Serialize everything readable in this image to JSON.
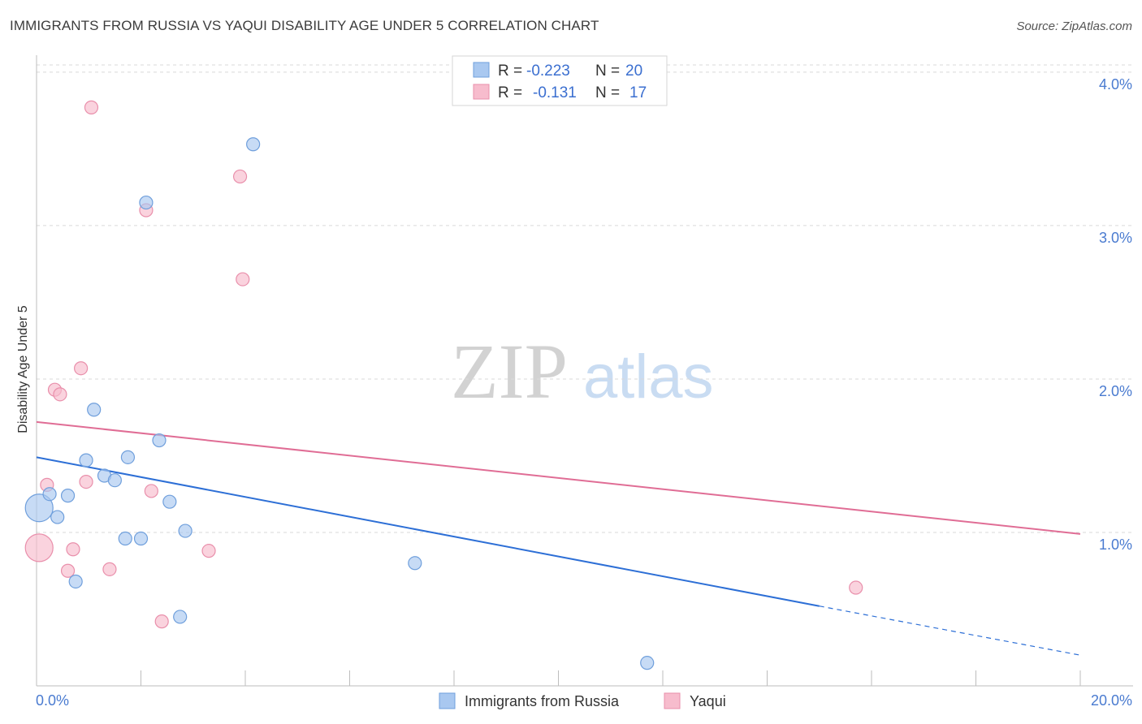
{
  "title": "IMMIGRANTS FROM RUSSIA VS YAQUI DISABILITY AGE UNDER 5 CORRELATION CHART",
  "source": "Source: ZipAtlas.com",
  "watermark": {
    "zip": "ZIP",
    "atlas": "atlas"
  },
  "colors": {
    "blue_fill": "#a9c8f0",
    "blue_stroke": "#6f9fdc",
    "blue_line": "#2d6fd6",
    "pink_fill": "#f7bccd",
    "pink_stroke": "#e98fab",
    "pink_line": "#e06d95",
    "grid": "#d9d9d9",
    "tick_label": "#4a7bd0"
  },
  "legend": {
    "rows": [
      {
        "r_label": "R =",
        "r_value": "-0.223",
        "n_label": "N =",
        "n_value": "20"
      },
      {
        "r_label": "R =",
        "r_value": "-0.131",
        "n_label": "N =",
        "n_value": "17"
      }
    ]
  },
  "bottom_legend": [
    "Immigrants from Russia",
    "Yaqui"
  ],
  "chart_data": {
    "type": "scatter",
    "title": "IMMIGRANTS FROM RUSSIA VS YAQUI DISABILITY AGE UNDER 5 CORRELATION CHART",
    "xlabel": "",
    "ylabel": "Disability Age Under 5",
    "xlim": [
      0,
      20
    ],
    "ylim": [
      0,
      4.1
    ],
    "x_tick_labels": [
      "0.0%",
      "20.0%"
    ],
    "y_ticks": [
      1.0,
      2.0,
      3.0,
      4.0
    ],
    "y_tick_labels": [
      "1.0%",
      "2.0%",
      "3.0%",
      "4.0%"
    ],
    "series": [
      {
        "name": "Immigrants from Russia",
        "points": [
          {
            "x": 0.05,
            "y": 1.16,
            "size": "large"
          },
          {
            "x": 0.25,
            "y": 1.25
          },
          {
            "x": 0.4,
            "y": 1.1
          },
          {
            "x": 0.6,
            "y": 1.24
          },
          {
            "x": 0.75,
            "y": 0.68
          },
          {
            "x": 0.95,
            "y": 1.47
          },
          {
            "x": 1.1,
            "y": 1.8
          },
          {
            "x": 1.3,
            "y": 1.37
          },
          {
            "x": 1.5,
            "y": 1.34
          },
          {
            "x": 1.7,
            "y": 0.96
          },
          {
            "x": 1.75,
            "y": 1.49
          },
          {
            "x": 2.0,
            "y": 0.96
          },
          {
            "x": 2.1,
            "y": 3.15
          },
          {
            "x": 2.35,
            "y": 1.6
          },
          {
            "x": 2.55,
            "y": 1.2
          },
          {
            "x": 2.75,
            "y": 0.45
          },
          {
            "x": 2.85,
            "y": 1.01
          },
          {
            "x": 4.15,
            "y": 3.53
          },
          {
            "x": 7.25,
            "y": 0.8
          },
          {
            "x": 11.7,
            "y": 0.15
          }
        ],
        "trend": {
          "x0": 0,
          "y0": 1.49,
          "x1": 15.0,
          "y1": 0.52,
          "dashed_to_x": 20,
          "dashed_to_y": 0.2
        }
      },
      {
        "name": "Yaqui",
        "points": [
          {
            "x": 0.05,
            "y": 0.9,
            "size": "large"
          },
          {
            "x": 0.2,
            "y": 1.31
          },
          {
            "x": 0.35,
            "y": 1.93
          },
          {
            "x": 0.45,
            "y": 1.9
          },
          {
            "x": 0.6,
            "y": 0.75
          },
          {
            "x": 0.7,
            "y": 0.89
          },
          {
            "x": 0.85,
            "y": 2.07
          },
          {
            "x": 0.95,
            "y": 1.33
          },
          {
            "x": 1.05,
            "y": 3.77
          },
          {
            "x": 1.4,
            "y": 0.76
          },
          {
            "x": 2.1,
            "y": 3.1
          },
          {
            "x": 2.2,
            "y": 1.27
          },
          {
            "x": 2.4,
            "y": 0.42
          },
          {
            "x": 3.3,
            "y": 0.88
          },
          {
            "x": 3.9,
            "y": 3.32
          },
          {
            "x": 3.95,
            "y": 2.65
          },
          {
            "x": 15.7,
            "y": 0.64
          }
        ],
        "trend": {
          "x0": 0,
          "y0": 1.72,
          "x1": 20,
          "y1": 0.99
        }
      }
    ]
  }
}
